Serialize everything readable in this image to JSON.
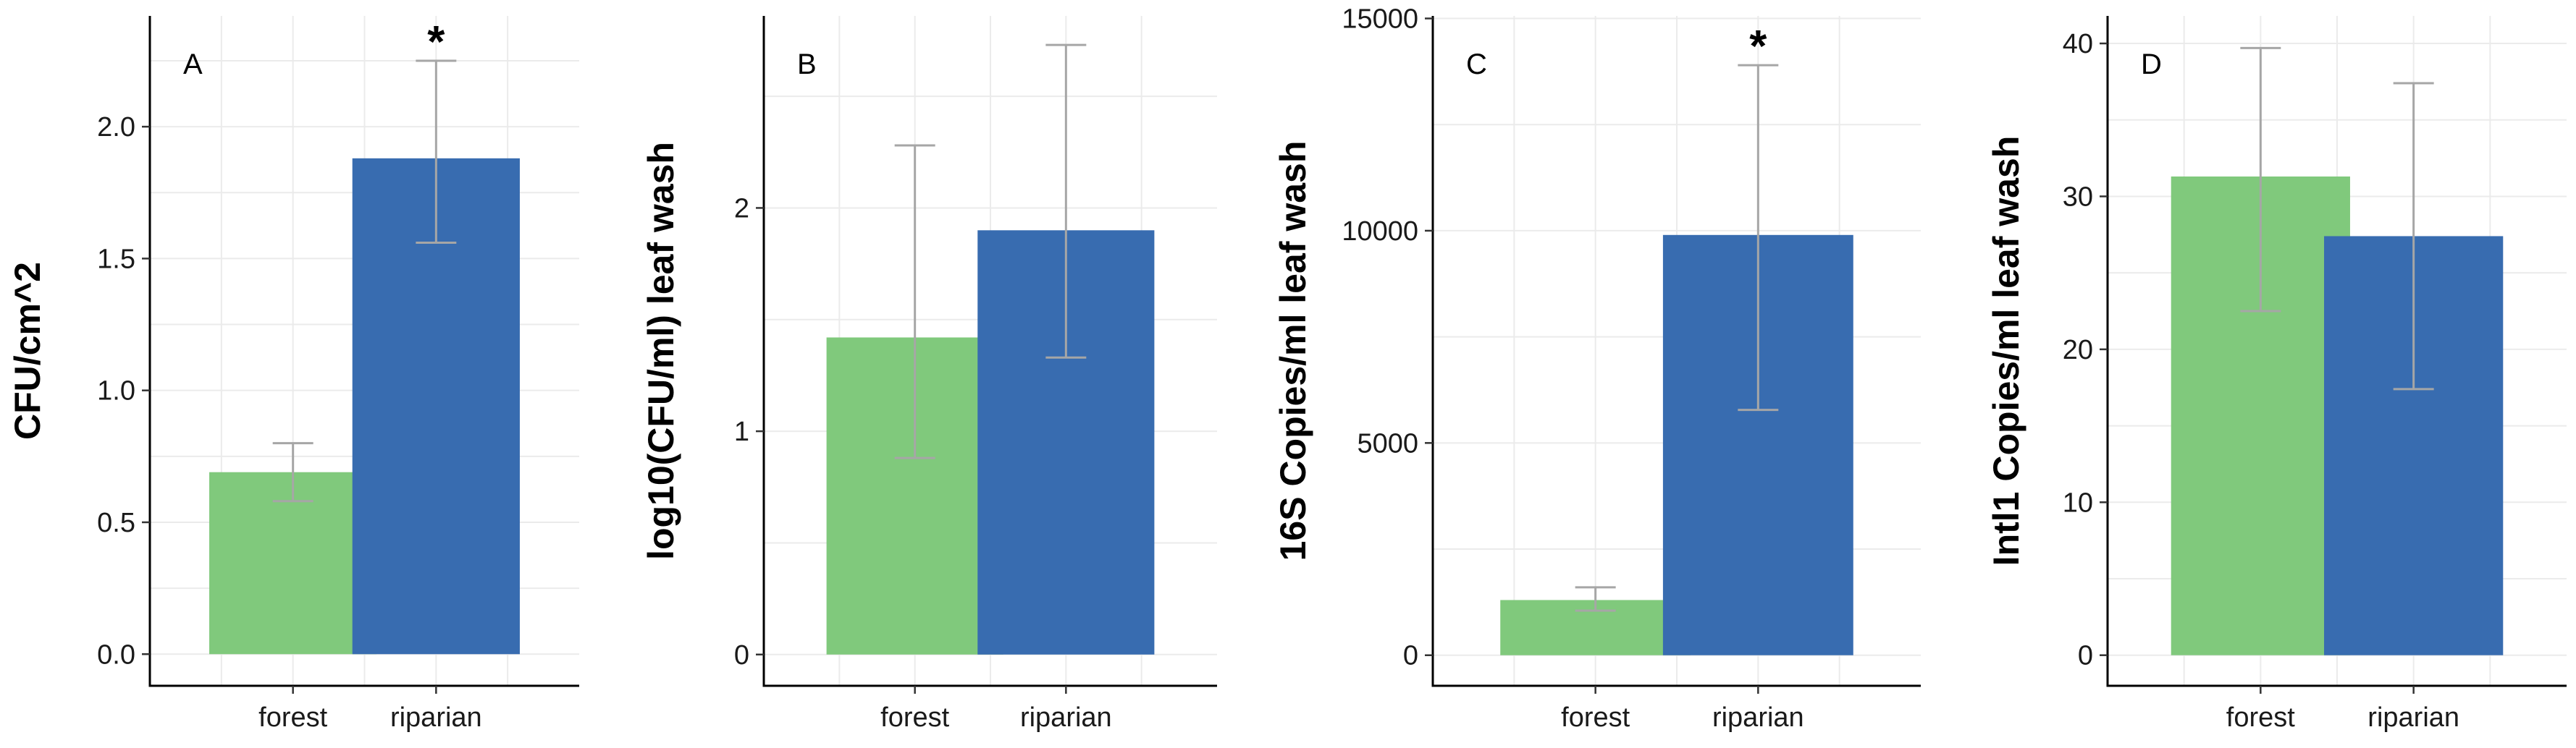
{
  "chart_data": [
    {
      "type": "bar",
      "panel_label": "A",
      "categories": [
        "forest",
        "riparian"
      ],
      "values": [
        0.69,
        1.88
      ],
      "error_low": [
        0.58,
        1.56
      ],
      "error_high": [
        0.8,
        2.25
      ],
      "significance": [
        "",
        "*"
      ],
      "ylabel": "CFU/cm^2",
      "xlabel": "",
      "ylim": [
        -0.12,
        2.42
      ],
      "yticks": [
        0.0,
        0.5,
        1.0,
        1.5,
        2.0
      ],
      "ytick_labels": [
        "0.0",
        "0.5",
        "1.0",
        "1.5",
        "2.0"
      ],
      "colors": [
        "#80C97C",
        "#386CB0"
      ],
      "grid": true
    },
    {
      "type": "bar",
      "panel_label": "B",
      "categories": [
        "forest",
        "riparian"
      ],
      "values": [
        1.42,
        1.9
      ],
      "error_low": [
        0.88,
        1.33
      ],
      "error_high": [
        2.28,
        2.73
      ],
      "significance": [
        "",
        ""
      ],
      "ylabel": "log10(CFU/ml) leaf wash",
      "xlabel": "",
      "ylim": [
        -0.14,
        2.86
      ],
      "yticks": [
        0,
        1,
        2
      ],
      "ytick_labels": [
        "0",
        "1",
        "2"
      ],
      "colors": [
        "#80C97C",
        "#386CB0"
      ],
      "grid": true
    },
    {
      "type": "bar",
      "panel_label": "C",
      "categories": [
        "forest",
        "riparian"
      ],
      "values": [
        1300,
        9900
      ],
      "error_low": [
        1050,
        5780
      ],
      "error_high": [
        1600,
        13900
      ],
      "significance": [
        "",
        "*"
      ],
      "ylabel": "16S Copies/ml leaf wash",
      "xlabel": "",
      "ylim": [
        -720,
        15060
      ],
      "yticks": [
        0,
        5000,
        10000,
        15000
      ],
      "ytick_labels": [
        "0",
        "5000",
        "10000",
        "15000"
      ],
      "colors": [
        "#80C97C",
        "#386CB0"
      ],
      "grid": true
    },
    {
      "type": "bar",
      "panel_label": "D",
      "categories": [
        "forest",
        "riparian"
      ],
      "values": [
        31.3,
        27.4
      ],
      "error_low": [
        22.5,
        17.4
      ],
      "error_high": [
        39.7,
        37.4
      ],
      "significance": [
        "",
        ""
      ],
      "ylabel": "Intl1 Copies/ml leaf wash",
      "xlabel": "",
      "ylim": [
        -2.0,
        41.8
      ],
      "yticks": [
        0,
        10,
        20,
        30,
        40
      ],
      "ytick_labels": [
        "0",
        "10",
        "20",
        "30",
        "40"
      ],
      "colors": [
        "#80C97C",
        "#386CB0"
      ],
      "grid": true
    }
  ]
}
